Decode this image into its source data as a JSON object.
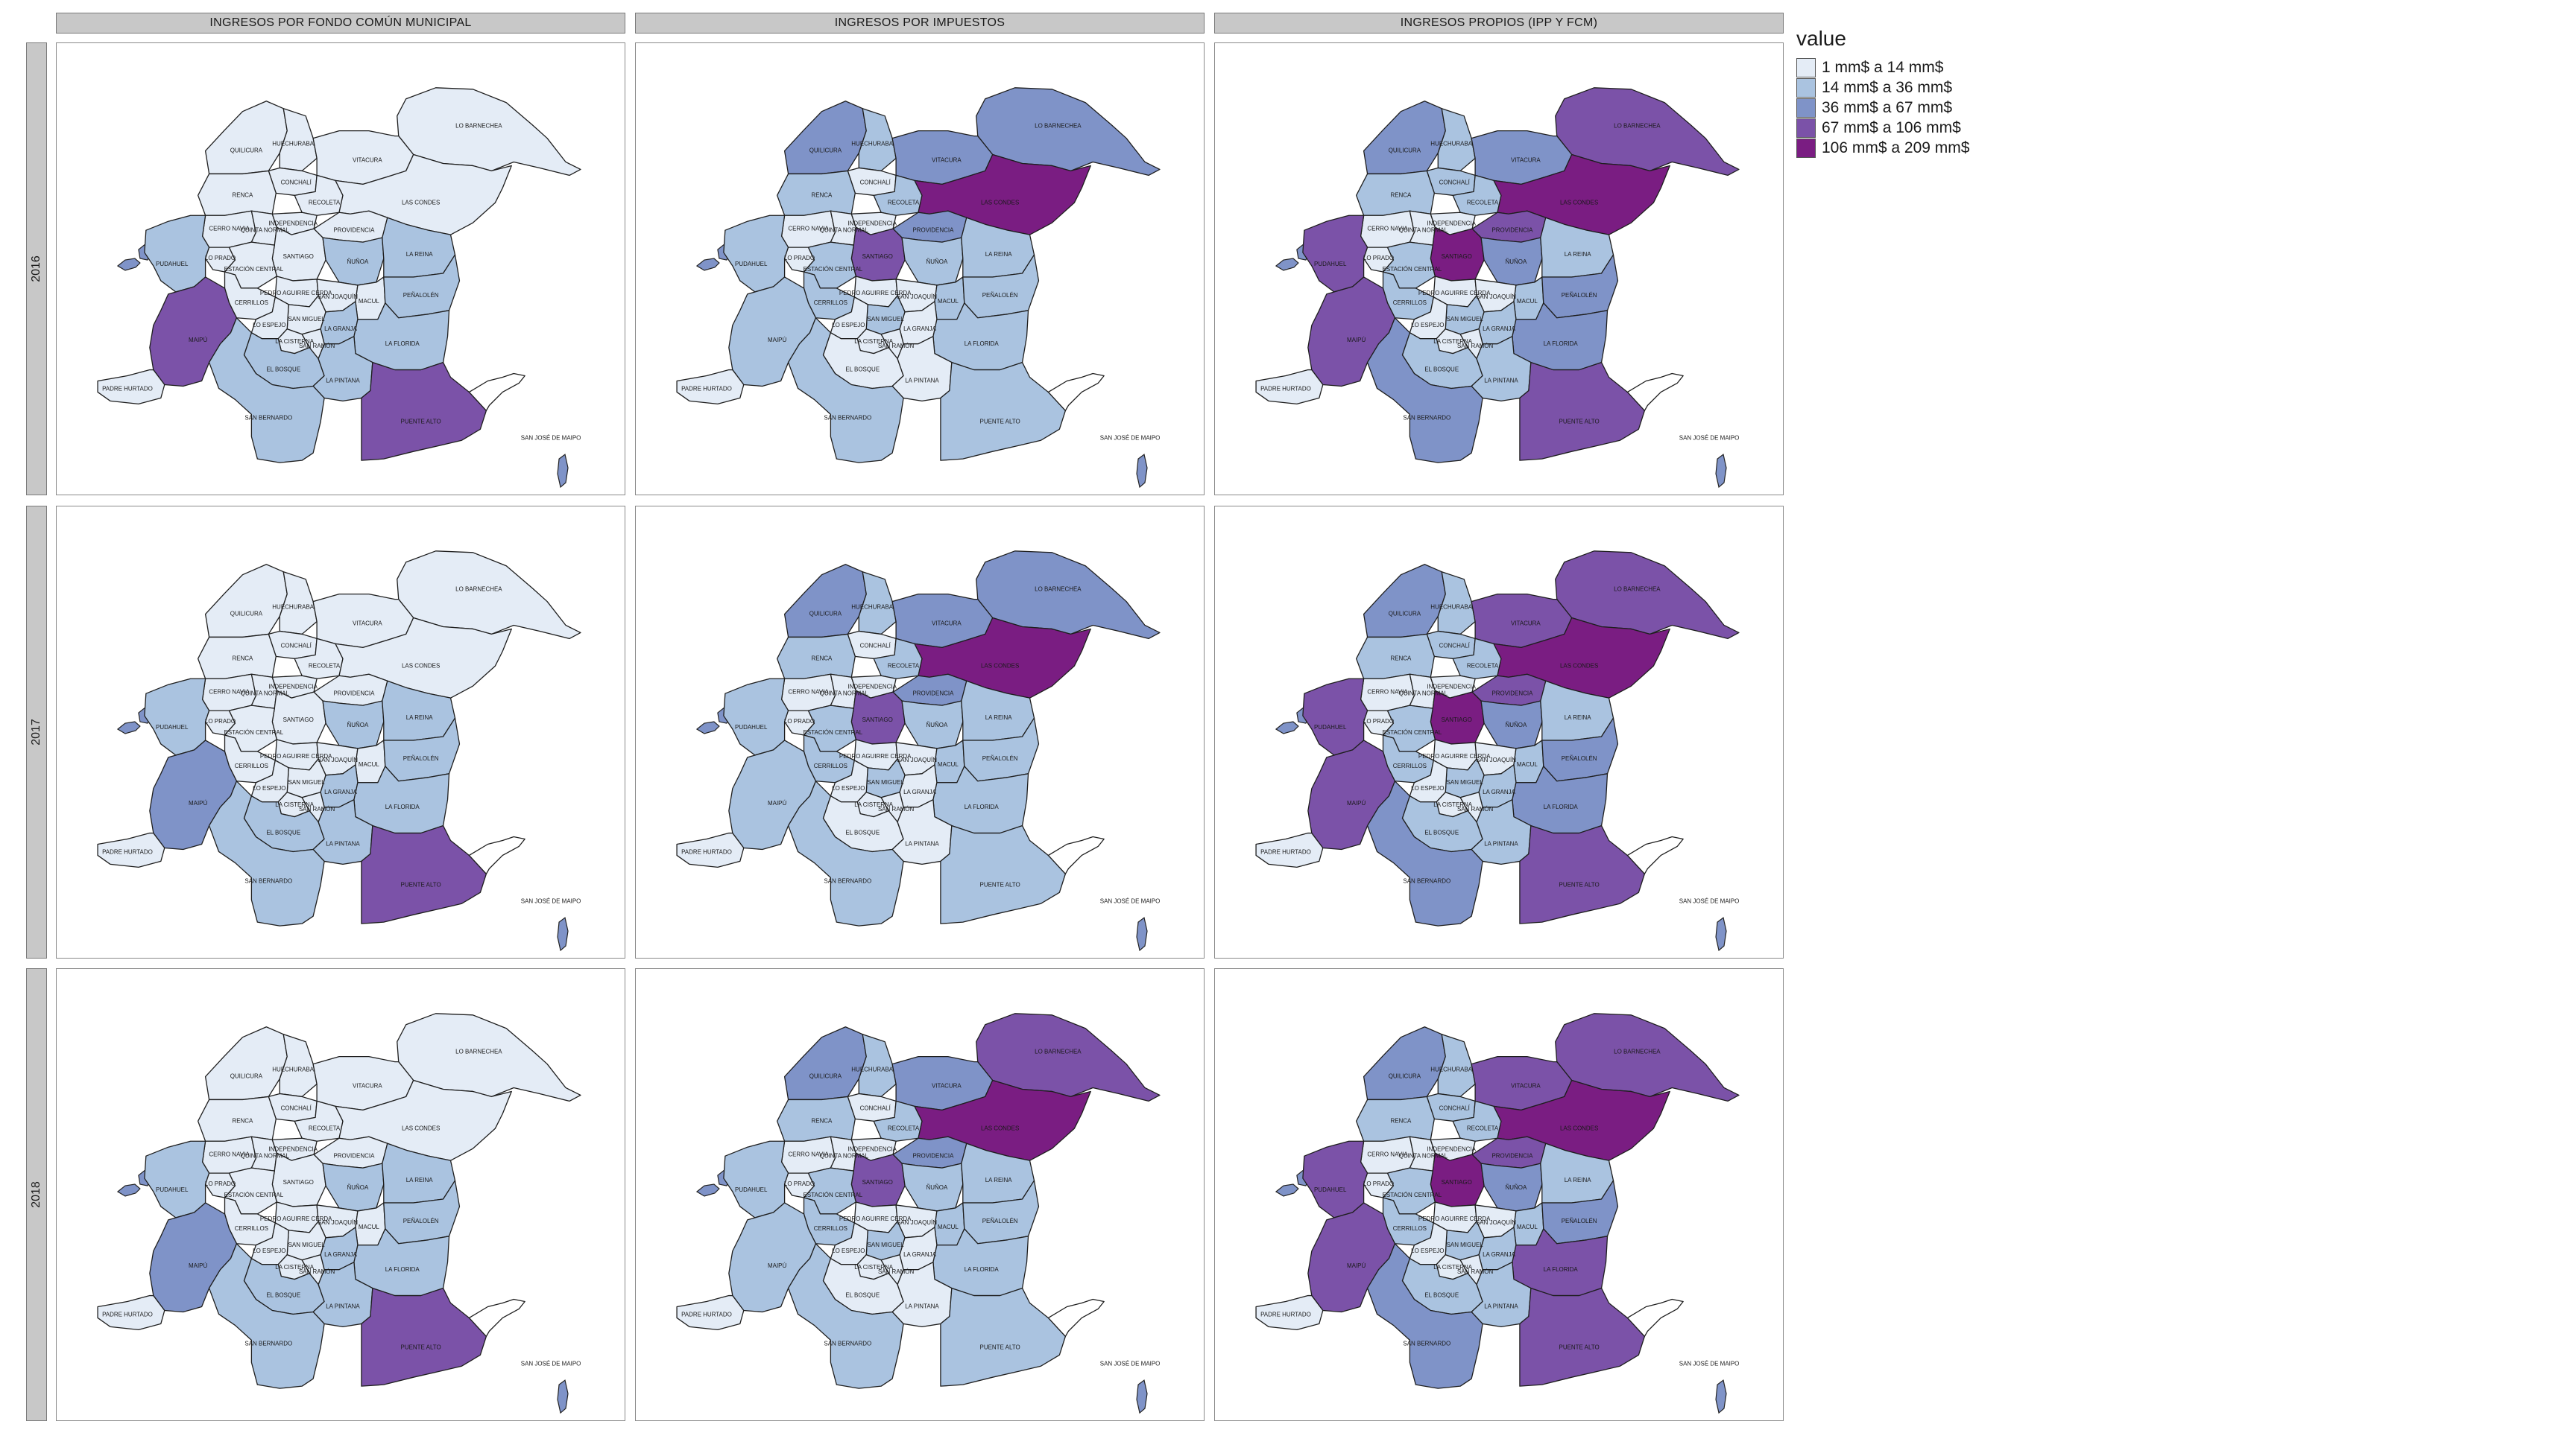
{
  "facets": {
    "columns": [
      "INGRESOS POR FONDO COMÚN MUNICIPAL",
      "INGRESOS POR IMPUESTOS",
      "INGRESOS PROPIOS (IPP Y FCM)"
    ],
    "rows": [
      "2016",
      "2017",
      "2018"
    ]
  },
  "legend": {
    "title": "value",
    "items": [
      {
        "label": "1 mm$ a 14 mm$",
        "color": "#e4ecf6"
      },
      {
        "label": "14 mm$ a 36 mm$",
        "color": "#aac3e0"
      },
      {
        "label": "36 mm$ a 67 mm$",
        "color": "#7f93c8"
      },
      {
        "label": "67 mm$ a 106 mm$",
        "color": "#7b52a8"
      },
      {
        "label": "106 mm$ a 209 mm$",
        "color": "#7a1d82"
      }
    ]
  },
  "communes": [
    {
      "id": "lo-barnechea",
      "label": "LO BARNECHEA"
    },
    {
      "id": "quilicura",
      "label": "QUILICURA"
    },
    {
      "id": "huechuraba",
      "label": "HUECHURABA"
    },
    {
      "id": "conchali",
      "label": "CONCHALÍ"
    },
    {
      "id": "vitacura",
      "label": "VITACURA"
    },
    {
      "id": "renca",
      "label": "RENCA"
    },
    {
      "id": "recoleta",
      "label": "RECOLETA"
    },
    {
      "id": "las-condes",
      "label": "LAS CONDES"
    },
    {
      "id": "cerro-navia",
      "label": "CERRO NAVIA"
    },
    {
      "id": "quinta-normal",
      "label": "QUINTA NORMAL"
    },
    {
      "id": "independencia",
      "label": "INDEPENDENCIA"
    },
    {
      "id": "providencia",
      "label": "PROVIDENCIA"
    },
    {
      "id": "pudahuel",
      "label": "PUDAHUEL"
    },
    {
      "id": "lo-prado",
      "label": "LO PRADO"
    },
    {
      "id": "santiago",
      "label": "SANTIAGO"
    },
    {
      "id": "nunoa",
      "label": "ÑUÑOA"
    },
    {
      "id": "la-reina",
      "label": "LA REINA"
    },
    {
      "id": "estacion-central",
      "label": "ESTACIÓN CENTRAL"
    },
    {
      "id": "pedro-aguirre-cerda",
      "label": "PEDRO AGUIRRE CERDA"
    },
    {
      "id": "san-joaquin",
      "label": "SAN JOAQUÍN"
    },
    {
      "id": "macul",
      "label": "MACUL"
    },
    {
      "id": "penalolen",
      "label": "PEÑALOLÉN"
    },
    {
      "id": "cerrillos",
      "label": "CERRILLOS"
    },
    {
      "id": "san-miguel",
      "label": "SAN MIGUEL"
    },
    {
      "id": "maipu",
      "label": "MAIPÚ"
    },
    {
      "id": "lo-espejo",
      "label": "LO ESPEJO"
    },
    {
      "id": "la-cisterna",
      "label": "LA CISTERNA"
    },
    {
      "id": "la-granja",
      "label": "LA GRANJA"
    },
    {
      "id": "san-ramon",
      "label": "SAN RAMÓN"
    },
    {
      "id": "la-florida",
      "label": "LA FLORIDA"
    },
    {
      "id": "el-bosque",
      "label": "EL BOSQUE"
    },
    {
      "id": "padre-hurtado",
      "label": "PADRE HURTADO"
    },
    {
      "id": "la-pintana",
      "label": "LA PINTANA"
    },
    {
      "id": "san-bernardo",
      "label": "SAN BERNARDO"
    },
    {
      "id": "puente-alto",
      "label": "PUENTE ALTO"
    },
    {
      "id": "san-jose-de-maipo",
      "label": "SAN JOSÉ DE MAIPO"
    }
  ],
  "values": [
    [
      {
        "maipu": 3,
        "puente-alto": 3,
        "san-bernardo": 1,
        "la-pintana": 1,
        "la-florida": 1,
        "penalolen": 1,
        "padre-hurtado": 0,
        "el-bosque": 1,
        "pudahuel": 1,
        "estacion-central": 0,
        "nunoa": 1,
        "la-reina": 1,
        "la-granja": 1,
        "santiago": 0,
        "las-condes": 0,
        "lo-barnechea": 0,
        "quilicura": 0,
        "vitacura": 0,
        "providencia": 0
      },
      {
        "maipu": 1,
        "puente-alto": 1,
        "san-bernardo": 1,
        "la-pintana": 0,
        "la-florida": 1,
        "penalolen": 1,
        "padre-hurtado": 0,
        "el-bosque": 0,
        "pudahuel": 1,
        "estacion-central": 1,
        "nunoa": 1,
        "la-reina": 1,
        "la-granja": 0,
        "santiago": 3,
        "las-condes": 4,
        "lo-barnechea": 2,
        "quilicura": 2,
        "vitacura": 2,
        "providencia": 2,
        "huechuraba": 1,
        "recoleta": 1,
        "renca": 1,
        "cerrillos": 1,
        "macul": 1,
        "san-miguel": 1
      },
      {
        "maipu": 3,
        "puente-alto": 3,
        "san-bernardo": 2,
        "la-pintana": 1,
        "la-florida": 2,
        "penalolen": 2,
        "padre-hurtado": 0,
        "el-bosque": 1,
        "pudahuel": 3,
        "estacion-central": 1,
        "nunoa": 2,
        "la-reina": 1,
        "la-granja": 1,
        "santiago": 4,
        "las-condes": 4,
        "lo-barnechea": 3,
        "quilicura": 2,
        "vitacura": 2,
        "providencia": 3,
        "huechuraba": 1,
        "recoleta": 1,
        "renca": 1,
        "cerrillos": 1,
        "macul": 1,
        "san-miguel": 1,
        "conchali": 1,
        "independencia": 0
      }
    ],
    [
      {
        "maipu": 2,
        "puente-alto": 3,
        "san-bernardo": 1,
        "la-pintana": 1,
        "la-florida": 1,
        "penalolen": 1,
        "padre-hurtado": 0,
        "el-bosque": 1,
        "pudahuel": 1,
        "estacion-central": 0,
        "nunoa": 1,
        "la-reina": 1,
        "la-granja": 1,
        "santiago": 0,
        "las-condes": 0,
        "lo-barnechea": 0,
        "quilicura": 0,
        "vitacura": 0,
        "providencia": 0
      },
      {
        "maipu": 1,
        "puente-alto": 1,
        "san-bernardo": 1,
        "la-pintana": 0,
        "la-florida": 1,
        "penalolen": 1,
        "padre-hurtado": 0,
        "el-bosque": 0,
        "pudahuel": 1,
        "estacion-central": 1,
        "nunoa": 1,
        "la-reina": 1,
        "la-granja": 0,
        "santiago": 3,
        "las-condes": 4,
        "lo-barnechea": 2,
        "quilicura": 2,
        "vitacura": 2,
        "providencia": 2,
        "huechuraba": 1,
        "recoleta": 1,
        "renca": 1,
        "cerrillos": 1,
        "macul": 1,
        "san-miguel": 1
      },
      {
        "maipu": 3,
        "puente-alto": 3,
        "san-bernardo": 2,
        "la-pintana": 1,
        "la-florida": 2,
        "penalolen": 2,
        "padre-hurtado": 0,
        "el-bosque": 1,
        "pudahuel": 3,
        "estacion-central": 1,
        "nunoa": 2,
        "la-reina": 1,
        "la-granja": 1,
        "santiago": 4,
        "las-condes": 4,
        "lo-barnechea": 3,
        "quilicura": 2,
        "vitacura": 3,
        "providencia": 3,
        "huechuraba": 1,
        "recoleta": 1,
        "renca": 1,
        "cerrillos": 1,
        "macul": 1,
        "san-miguel": 1,
        "conchali": 1,
        "independencia": 0
      }
    ],
    [
      {
        "maipu": 2,
        "puente-alto": 3,
        "san-bernardo": 1,
        "la-pintana": 1,
        "la-florida": 1,
        "penalolen": 1,
        "padre-hurtado": 0,
        "el-bosque": 1,
        "pudahuel": 1,
        "estacion-central": 0,
        "nunoa": 1,
        "la-reina": 1,
        "la-granja": 1,
        "santiago": 0,
        "las-condes": 0,
        "lo-barnechea": 0,
        "quilicura": 0,
        "vitacura": 0,
        "providencia": 0
      },
      {
        "maipu": 1,
        "puente-alto": 1,
        "san-bernardo": 1,
        "la-pintana": 0,
        "la-florida": 1,
        "penalolen": 1,
        "padre-hurtado": 0,
        "el-bosque": 0,
        "pudahuel": 1,
        "estacion-central": 1,
        "nunoa": 1,
        "la-reina": 1,
        "la-granja": 0,
        "santiago": 3,
        "las-condes": 4,
        "lo-barnechea": 3,
        "quilicura": 2,
        "vitacura": 2,
        "providencia": 2,
        "huechuraba": 1,
        "recoleta": 1,
        "renca": 1,
        "cerrillos": 1,
        "macul": 1,
        "san-miguel": 1
      },
      {
        "maipu": 3,
        "puente-alto": 3,
        "san-bernardo": 2,
        "la-pintana": 1,
        "la-florida": 3,
        "penalolen": 2,
        "padre-hurtado": 0,
        "el-bosque": 1,
        "pudahuel": 3,
        "estacion-central": 1,
        "nunoa": 2,
        "la-reina": 1,
        "la-granja": 1,
        "santiago": 4,
        "las-condes": 4,
        "lo-barnechea": 3,
        "quilicura": 2,
        "vitacura": 3,
        "providencia": 3,
        "huechuraba": 1,
        "recoleta": 1,
        "renca": 1,
        "cerrillos": 1,
        "macul": 1,
        "san-miguel": 1,
        "conchali": 1,
        "independencia": 0
      }
    ]
  ]
}
